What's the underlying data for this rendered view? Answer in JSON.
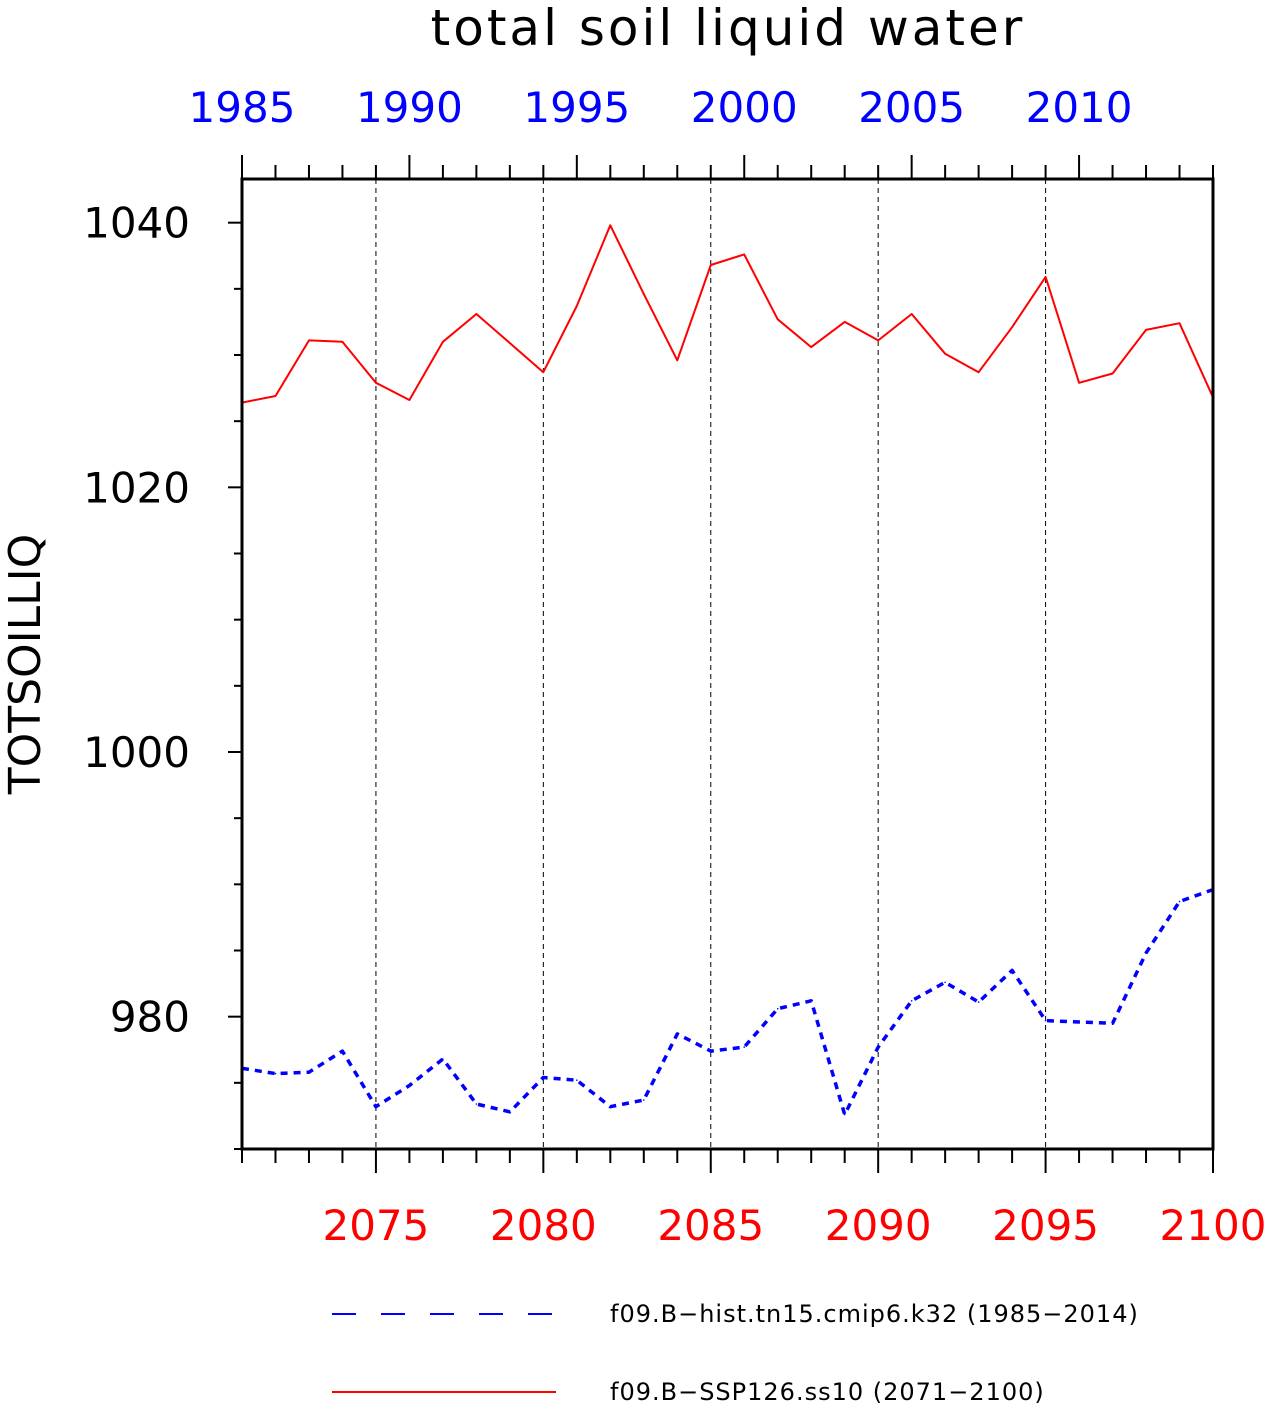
{
  "chart_data": {
    "type": "line",
    "title": "total soil liquid water",
    "ylabel": "TOTSOILLIQ",
    "ylim": [
      970,
      1043.3
    ],
    "y_ticks_major": [
      980,
      1000,
      1020,
      1040
    ],
    "y_ticks_minor_step": 5,
    "grid": "vertical dashed lines at labeled x ticks",
    "x_bottom": {
      "label": "",
      "range": [
        2071,
        2100
      ],
      "tick_labels": [
        "2075",
        "2080",
        "2085",
        "2090",
        "2095",
        "2100"
      ],
      "color": "#ff0000"
    },
    "x_top": {
      "label": "",
      "range": [
        1985,
        2014
      ],
      "tick_labels": [
        "1985",
        "1990",
        "1995",
        "2000",
        "2005",
        "2010"
      ],
      "color": "#0000ff"
    },
    "legend_position": "bottom",
    "series": [
      {
        "name": "f09.B−hist.tn15.cmip6.k32 (1985−2014)",
        "axis": "top",
        "color": "#0000ff",
        "style": "dashed",
        "x": [
          1985,
          1986,
          1987,
          1988,
          1989,
          1990,
          1991,
          1992,
          1993,
          1994,
          1995,
          1996,
          1997,
          1998,
          1999,
          2000,
          2001,
          2002,
          2003,
          2004,
          2005,
          2006,
          2007,
          2008,
          2009,
          2010,
          2011,
          2012,
          2013,
          2014
        ],
        "values": [
          976.1,
          975.7,
          975.8,
          977.4,
          973.2,
          974.8,
          976.8,
          973.4,
          972.8,
          975.4,
          975.2,
          973.2,
          973.7,
          978.7,
          977.4,
          977.7,
          980.6,
          981.2,
          972.6,
          977.7,
          981.2,
          982.6,
          981.1,
          983.5,
          979.7,
          979.6,
          979.5,
          984.8,
          988.7,
          989.6
        ]
      },
      {
        "name": "f09.B−SSP126.ss10 (2071−2100)",
        "axis": "bottom",
        "color": "#ff0000",
        "style": "solid",
        "x": [
          2071,
          2072,
          2073,
          2074,
          2075,
          2076,
          2077,
          2078,
          2079,
          2080,
          2081,
          2082,
          2083,
          2084,
          2085,
          2086,
          2087,
          2088,
          2089,
          2090,
          2091,
          2092,
          2093,
          2094,
          2095,
          2096,
          2097,
          2098,
          2099,
          2100
        ],
        "values": [
          1026.4,
          1026.9,
          1031.1,
          1031.0,
          1027.9,
          1026.6,
          1031.0,
          1033.1,
          1030.9,
          1028.7,
          1033.7,
          1039.8,
          1034.6,
          1029.6,
          1036.8,
          1037.6,
          1032.7,
          1030.6,
          1032.5,
          1031.1,
          1033.1,
          1030.1,
          1028.7,
          1032.1,
          1035.9,
          1027.9,
          1028.6,
          1031.9,
          1032.4,
          1026.8
        ]
      }
    ]
  }
}
